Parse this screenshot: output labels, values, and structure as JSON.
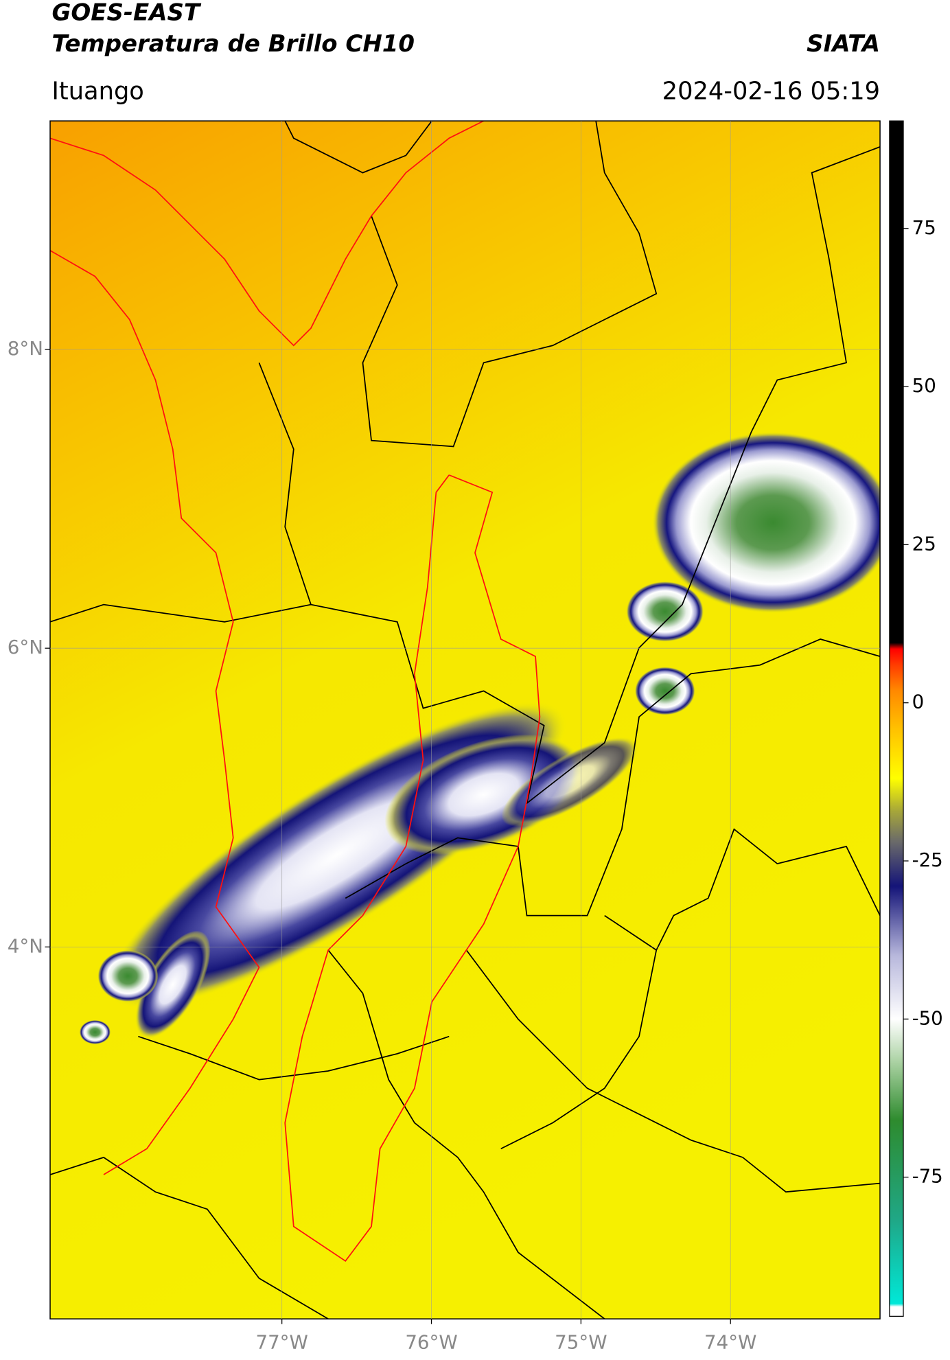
{
  "header": {
    "title": "GOES-EAST",
    "subtitle": "Temperatura de Brillo CH10",
    "organization": "SIATA",
    "location": "Ituango",
    "datetime": "2024-02-16 05:19"
  },
  "map": {
    "lonlim": [
      -78.55,
      -73.0
    ],
    "latlim": [
      1.51,
      9.53
    ],
    "lat_ticks": [
      {
        "value": 8,
        "label": "8°N"
      },
      {
        "value": 6,
        "label": "6°N"
      },
      {
        "value": 4,
        "label": "4°N"
      }
    ],
    "lon_ticks": [
      {
        "value": -77,
        "label": "77°W"
      },
      {
        "value": -76,
        "label": "76°W"
      },
      {
        "value": -75,
        "label": "75°W"
      },
      {
        "value": -74,
        "label": "74°W"
      }
    ],
    "grid": true
  },
  "colorbar": {
    "lim": [
      -97,
      92
    ],
    "ticks": [
      75,
      50,
      25,
      0,
      -25,
      -50,
      -75
    ],
    "colorscale": [
      [
        -97,
        "#ffffff"
      ],
      [
        -95.5,
        "#ffffff"
      ],
      [
        -95,
        "#00e8d8"
      ],
      [
        -82,
        "#1fa888"
      ],
      [
        -66,
        "#2e8b2e"
      ],
      [
        -57,
        "#a8d0a0"
      ],
      [
        -50,
        "#ffffff"
      ],
      [
        -40,
        "#b8b8dc"
      ],
      [
        -29,
        "#141478"
      ],
      [
        -22,
        "#6a6a6a"
      ],
      [
        -17,
        "#a8a838"
      ],
      [
        -12,
        "#ffff00"
      ],
      [
        -4,
        "#ffc000"
      ],
      [
        2,
        "#ff8800"
      ],
      [
        6,
        "#ff3c00"
      ],
      [
        8.5,
        "#ff0000"
      ],
      [
        9.5,
        "#000000"
      ],
      [
        92,
        "#000000"
      ]
    ]
  }
}
